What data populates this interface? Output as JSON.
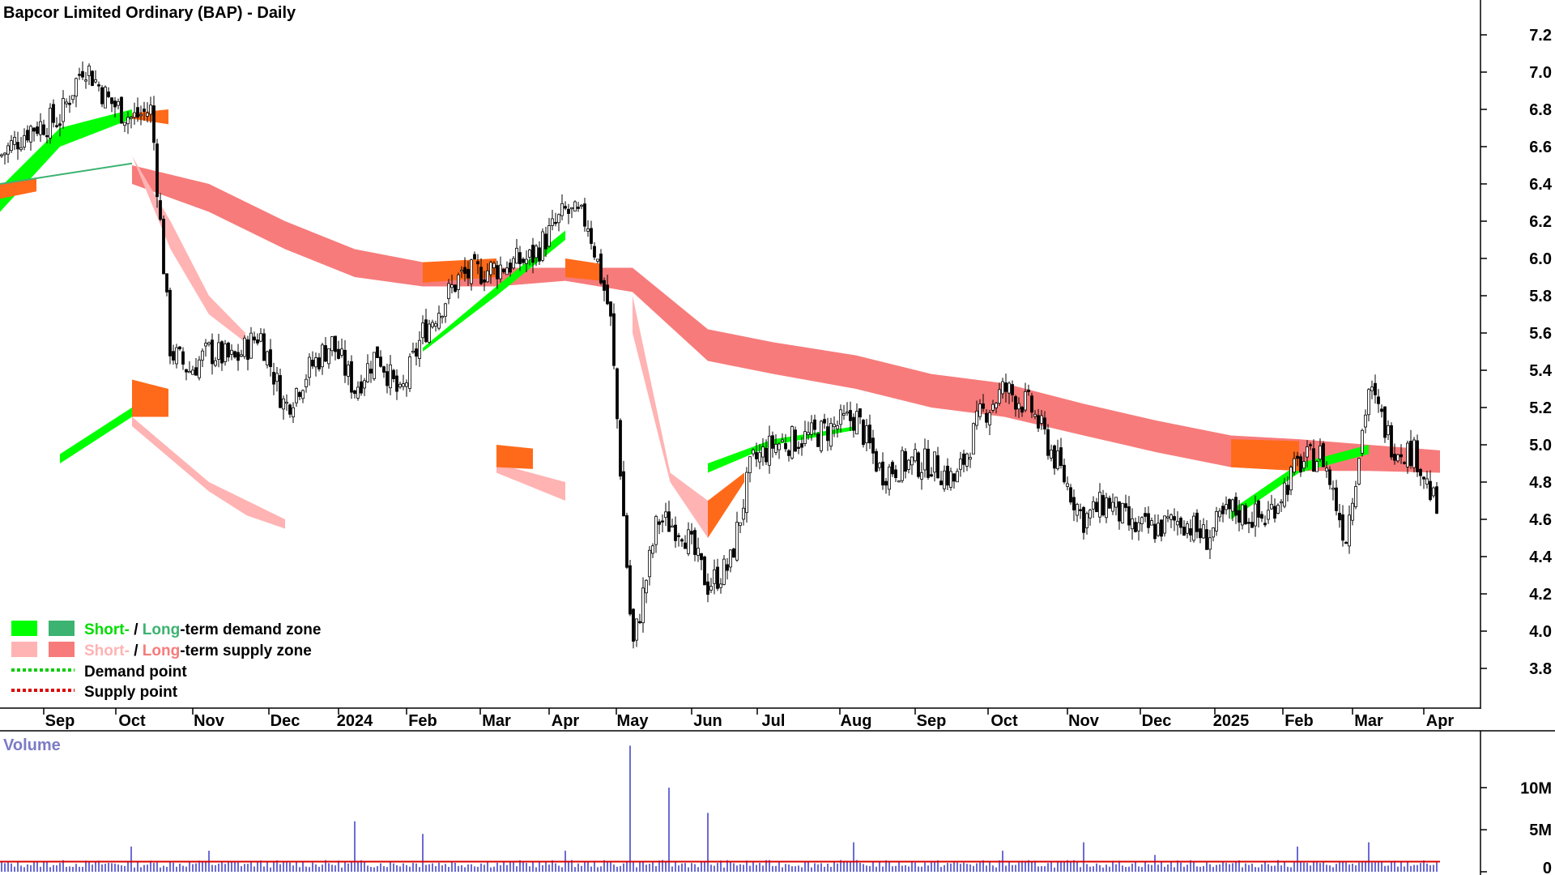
{
  "title": "Bapcor Limited Ordinary (BAP) - Daily",
  "colors": {
    "short_demand": "#00ff00",
    "long_demand": "#3cb371",
    "short_supply": "#ffb3b3",
    "long_supply": "#f77b7b",
    "overlap": "#ff6a1a",
    "volume_bar": "#6b6bd6",
    "volume_avg": "#dd0000",
    "demand_point": "#00cc00",
    "supply_point": "#dd0000"
  },
  "legend": {
    "row1": {
      "short": "Short-",
      "sep": " / ",
      "long": "Long",
      "rest": "-term demand zone"
    },
    "row2": {
      "short": "Short-",
      "sep": " / ",
      "long": "Long",
      "rest": "-term supply zone"
    },
    "row3": "Demand point",
    "row4": "Supply point"
  },
  "chart_data": [
    {
      "type": "candlestick",
      "title": "Bapcor Limited Ordinary (BAP) - Daily",
      "y_range": [
        3.7,
        7.3
      ],
      "y_ticks": [
        "7.2",
        "7.0",
        "6.8",
        "6.6",
        "6.4",
        "6.2",
        "6.0",
        "5.8",
        "5.6",
        "5.4",
        "5.2",
        "5.0",
        "4.8",
        "4.6",
        "4.4",
        "4.2",
        "4.0",
        "3.8"
      ],
      "x_ticks": [
        "Sep",
        "Oct",
        "Nov",
        "Dec",
        "2024",
        "Feb",
        "Mar",
        "Apr",
        "May",
        "Jun",
        "Jul",
        "Aug",
        "Sep",
        "Oct",
        "Nov",
        "Dec",
        "2025",
        "Feb",
        "Mar",
        "Apr"
      ],
      "price_path": [
        [
          "Aug",
          6.55
        ],
        [
          "Aug",
          6.7
        ],
        [
          "Sep",
          6.75
        ],
        [
          "Sep",
          7.05
        ],
        [
          "Sep",
          6.85
        ],
        [
          "Oct",
          6.75
        ],
        [
          "Oct",
          6.8
        ],
        [
          "Oct",
          5.5
        ],
        [
          "Oct",
          5.4
        ],
        [
          "Nov",
          5.5
        ],
        [
          "Nov",
          5.45
        ],
        [
          "Nov",
          5.6
        ],
        [
          "Dec",
          5.2
        ],
        [
          "Dec",
          5.4
        ],
        [
          "Dec",
          5.55
        ],
        [
          "2024",
          5.3
        ],
        [
          "2024",
          5.5
        ],
        [
          "Jan",
          5.25
        ],
        [
          "Feb",
          5.6
        ],
        [
          "Feb",
          5.9
        ],
        [
          "Mar",
          5.95
        ],
        [
          "Mar",
          6.0
        ],
        [
          "Apr",
          6.25
        ],
        [
          "Apr",
          6.2
        ],
        [
          "Apr",
          5.7
        ],
        [
          "May",
          3.9
        ],
        [
          "May",
          4.6
        ],
        [
          "May",
          4.55
        ],
        [
          "Jun",
          4.25
        ],
        [
          "Jun",
          4.35
        ],
        [
          "Jun",
          4.9
        ],
        [
          "Jul",
          5.0
        ],
        [
          "Jul",
          5.05
        ],
        [
          "Aug",
          5.15
        ],
        [
          "Aug",
          4.85
        ],
        [
          "Aug",
          4.9
        ],
        [
          "Sep",
          4.9
        ],
        [
          "Sep",
          4.8
        ],
        [
          "Sep",
          5.15
        ],
        [
          "Oct",
          5.3
        ],
        [
          "Oct",
          5.2
        ],
        [
          "Oct",
          4.9
        ],
        [
          "Nov",
          4.6
        ],
        [
          "Nov",
          4.7
        ],
        [
          "Nov",
          4.55
        ],
        [
          "Dec",
          4.55
        ],
        [
          "Dec",
          4.6
        ],
        [
          "Dec",
          4.5
        ],
        [
          "2025",
          4.65
        ],
        [
          "2025",
          4.6
        ],
        [
          "Feb",
          4.9
        ],
        [
          "Feb",
          4.95
        ],
        [
          "Feb",
          4.5
        ],
        [
          "Mar",
          5.3
        ],
        [
          "Mar",
          5.0
        ],
        [
          "Mar",
          4.95
        ],
        [
          "Apr",
          4.6
        ],
        [
          "Apr",
          4.25
        ]
      ],
      "long_supply_zone": [
        [
          "Oct",
          6.5,
          6.4
        ],
        [
          "Nov",
          6.4,
          6.25
        ],
        [
          "Dec",
          6.2,
          6.05
        ],
        [
          "2024",
          6.05,
          5.9
        ],
        [
          "Feb",
          5.98,
          5.85
        ],
        [
          "Mar",
          5.95,
          5.85
        ],
        [
          "Apr",
          5.95,
          5.88
        ],
        [
          "May",
          5.95,
          5.82
        ],
        [
          "Jun",
          5.62,
          5.45
        ],
        [
          "Jul",
          5.55,
          5.38
        ],
        [
          "Aug",
          5.48,
          5.3
        ],
        [
          "Sep",
          5.38,
          5.2
        ],
        [
          "Oct",
          5.33,
          5.15
        ],
        [
          "Nov",
          5.22,
          5.05
        ],
        [
          "Dec",
          5.13,
          4.96
        ],
        [
          "2025",
          5.05,
          4.88
        ],
        [
          "Feb",
          5.03,
          4.86
        ],
        [
          "Mar",
          5.0,
          4.86
        ],
        [
          "Apr",
          4.97,
          4.85
        ]
      ],
      "long_demand_line": [
        [
          "Aug",
          6.4
        ],
        [
          "Sep",
          6.45
        ],
        [
          "Oct",
          6.51
        ]
      ],
      "short_demand_zones": [
        [
          [
            "Aug",
            6.25,
            6.38
          ],
          [
            "Sep",
            6.6,
            6.7
          ],
          [
            "Oct",
            6.8,
            6.75
          ]
        ],
        [
          [
            "Feb",
            5.5,
            5.52
          ],
          [
            "Mar",
            5.8,
            5.85
          ],
          [
            "Apr",
            6.1,
            6.15
          ]
        ],
        [
          [
            "Jun",
            4.85,
            4.9
          ],
          [
            "Jul",
            5.0,
            5.03
          ],
          [
            "Aug",
            5.1,
            5.08
          ]
        ],
        [
          [
            "Sep",
            4.9,
            4.95
          ],
          [
            "Oct",
            5.2,
            5.15
          ]
        ],
        [
          [
            "2025",
            4.6,
            4.65
          ],
          [
            "Feb",
            4.85,
            4.9
          ],
          [
            "Mar",
            4.95,
            5.0
          ]
        ]
      ],
      "short_supply_zones": [
        [
          [
            "Oct",
            6.55,
            6.55
          ],
          [
            "Oct",
            6.2,
            6.05
          ],
          [
            "Nov",
            5.8,
            5.7
          ],
          [
            "Nov",
            5.6,
            5.55
          ]
        ],
        [
          [
            "May",
            5.8,
            5.6
          ],
          [
            "May",
            4.85,
            4.8
          ],
          [
            "Jun",
            4.7,
            4.5
          ]
        ],
        [
          [
            "Oct",
            5.15,
            5.1
          ],
          [
            "Nov",
            4.8,
            4.75
          ],
          [
            "Nov",
            4.7,
            4.62
          ],
          [
            "Dec",
            4.6,
            4.55
          ]
        ],
        [
          [
            "Mar",
            4.9,
            4.85
          ],
          [
            "Apr",
            4.8,
            4.7
          ]
        ]
      ],
      "overlap_zones": [
        [
          [
            "Aug",
            6.4,
            6.32
          ],
          [
            "Aug",
            6.43,
            6.36
          ]
        ],
        [
          [
            "Oct",
            6.78,
            6.75
          ],
          [
            "Oct",
            6.8,
            6.72
          ]
        ],
        [
          [
            "Feb",
            5.98,
            5.87
          ],
          [
            "Mar",
            6.0,
            5.9
          ]
        ],
        [
          [
            "Apr",
            6.0,
            5.9
          ],
          [
            "Apr",
            5.97,
            5.88
          ]
        ],
        [
          [
            "Jun",
            4.7,
            4.5
          ],
          [
            "Jun",
            4.85,
            4.8
          ]
        ],
        [
          [
            "Oct",
            5.35,
            5.15
          ],
          [
            "Oct",
            5.3,
            5.15
          ]
        ],
        [
          [
            "2025",
            5.03,
            4.88
          ],
          [
            "Feb",
            5.02,
            4.86
          ]
        ],
        [
          [
            "Mar",
            5.0,
            4.88
          ],
          [
            "Mar",
            4.98,
            4.87
          ]
        ]
      ]
    },
    {
      "type": "bar",
      "title": "Volume",
      "y_ticks": [
        "10M",
        "5M",
        "0"
      ],
      "y_range": [
        0,
        16
      ],
      "volume_avg": 1.2,
      "spikes": [
        [
          "Oct",
          3.0
        ],
        [
          "Nov",
          2.5
        ],
        [
          "2024",
          6.0
        ],
        [
          "Feb",
          4.5
        ],
        [
          "Apr",
          2.5
        ],
        [
          "May",
          15.0
        ],
        [
          "May",
          10.0
        ],
        [
          "Jun",
          7.0
        ],
        [
          "Jun",
          3.5
        ],
        [
          "Oct",
          2.5
        ],
        [
          "Nov",
          3.5
        ],
        [
          "Dec",
          2.0
        ],
        [
          "Feb",
          3.0
        ],
        [
          "Mar",
          3.5
        ],
        [
          "Apr",
          2.0
        ]
      ],
      "base_volume": 1.0
    }
  ]
}
